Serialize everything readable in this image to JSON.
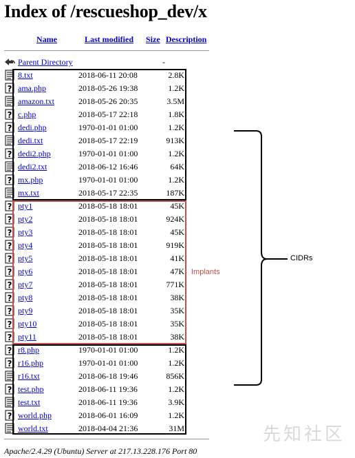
{
  "page": {
    "title": "Index of /rescueshop_dev/x"
  },
  "columns": {
    "name": "Name",
    "last_modified": "Last modified",
    "size": "Size",
    "description": "Description"
  },
  "parent": {
    "label": "Parent Directory",
    "size": "-"
  },
  "files": [
    {
      "name": "8.txt",
      "modified": "2018-06-11 20:08",
      "size": "2.8K",
      "icon": "text-file-icon"
    },
    {
      "name": "ama.php",
      "modified": "2018-05-26 19:38",
      "size": "1.2K",
      "icon": "unknown-file-icon"
    },
    {
      "name": "amazon.txt",
      "modified": "2018-05-26 20:35",
      "size": "3.5M",
      "icon": "text-file-icon"
    },
    {
      "name": "c.php",
      "modified": "2018-05-17 22:18",
      "size": "1.8K",
      "icon": "unknown-file-icon"
    },
    {
      "name": "dedi.php",
      "modified": "1970-01-01 01:00",
      "size": "1.2K",
      "icon": "unknown-file-icon"
    },
    {
      "name": "dedi.txt",
      "modified": "2018-05-17 22:19",
      "size": "913K",
      "icon": "text-file-icon"
    },
    {
      "name": "dedi2.php",
      "modified": "1970-01-01 01:00",
      "size": "1.2K",
      "icon": "unknown-file-icon"
    },
    {
      "name": "dedi2.txt",
      "modified": "2018-06-12 16:46",
      "size": "64K",
      "icon": "text-file-icon"
    },
    {
      "name": "mx.php",
      "modified": "1970-01-01 01:00",
      "size": "1.2K",
      "icon": "unknown-file-icon"
    },
    {
      "name": "mx.txt",
      "modified": "2018-05-17 22:35",
      "size": "187K",
      "icon": "text-file-icon"
    },
    {
      "name": "pty1",
      "modified": "2018-05-18 18:01",
      "size": "45K",
      "icon": "unknown-file-icon"
    },
    {
      "name": "pty2",
      "modified": "2018-05-18 18:01",
      "size": "924K",
      "icon": "unknown-file-icon"
    },
    {
      "name": "pty3",
      "modified": "2018-05-18 18:01",
      "size": "45K",
      "icon": "unknown-file-icon"
    },
    {
      "name": "pty4",
      "modified": "2018-05-18 18:01",
      "size": "919K",
      "icon": "unknown-file-icon"
    },
    {
      "name": "pty5",
      "modified": "2018-05-18 18:01",
      "size": "41K",
      "icon": "unknown-file-icon"
    },
    {
      "name": "pty6",
      "modified": "2018-05-18 18:01",
      "size": "47K",
      "icon": "unknown-file-icon"
    },
    {
      "name": "pty7",
      "modified": "2018-05-18 18:01",
      "size": "771K",
      "icon": "unknown-file-icon"
    },
    {
      "name": "pty8",
      "modified": "2018-05-18 18:01",
      "size": "38K",
      "icon": "unknown-file-icon"
    },
    {
      "name": "pty9",
      "modified": "2018-05-18 18:01",
      "size": "35K",
      "icon": "unknown-file-icon"
    },
    {
      "name": "pty10",
      "modified": "2018-05-18 18:01",
      "size": "35K",
      "icon": "unknown-file-icon"
    },
    {
      "name": "pty11",
      "modified": "2018-05-18 18:01",
      "size": "38K",
      "icon": "unknown-file-icon"
    },
    {
      "name": "r8.php",
      "modified": "1970-01-01 01:00",
      "size": "1.2K",
      "icon": "unknown-file-icon"
    },
    {
      "name": "r16.php",
      "modified": "1970-01-01 01:00",
      "size": "1.2K",
      "icon": "unknown-file-icon"
    },
    {
      "name": "r16.txt",
      "modified": "2018-06-18 19:46",
      "size": "856K",
      "icon": "text-file-icon"
    },
    {
      "name": "test.php",
      "modified": "2018-06-11 19:36",
      "size": "1.2K",
      "icon": "unknown-file-icon"
    },
    {
      "name": "test.txt",
      "modified": "2018-06-11 19:36",
      "size": "3.9K",
      "icon": "text-file-icon"
    },
    {
      "name": "world.php",
      "modified": "2018-06-01 16:09",
      "size": "1.2K",
      "icon": "unknown-file-icon"
    },
    {
      "name": "world.txt",
      "modified": "2018-04-04 21:36",
      "size": "31M",
      "icon": "text-file-icon"
    }
  ],
  "annotations": {
    "implants_label": "Implants",
    "cidrs_label": "CIDRs",
    "implants_color": "#c0504d"
  },
  "footer": "Apache/2.4.29 (Ubuntu) Server at 217.13.228.176 Port 80",
  "watermark": "先知社区"
}
